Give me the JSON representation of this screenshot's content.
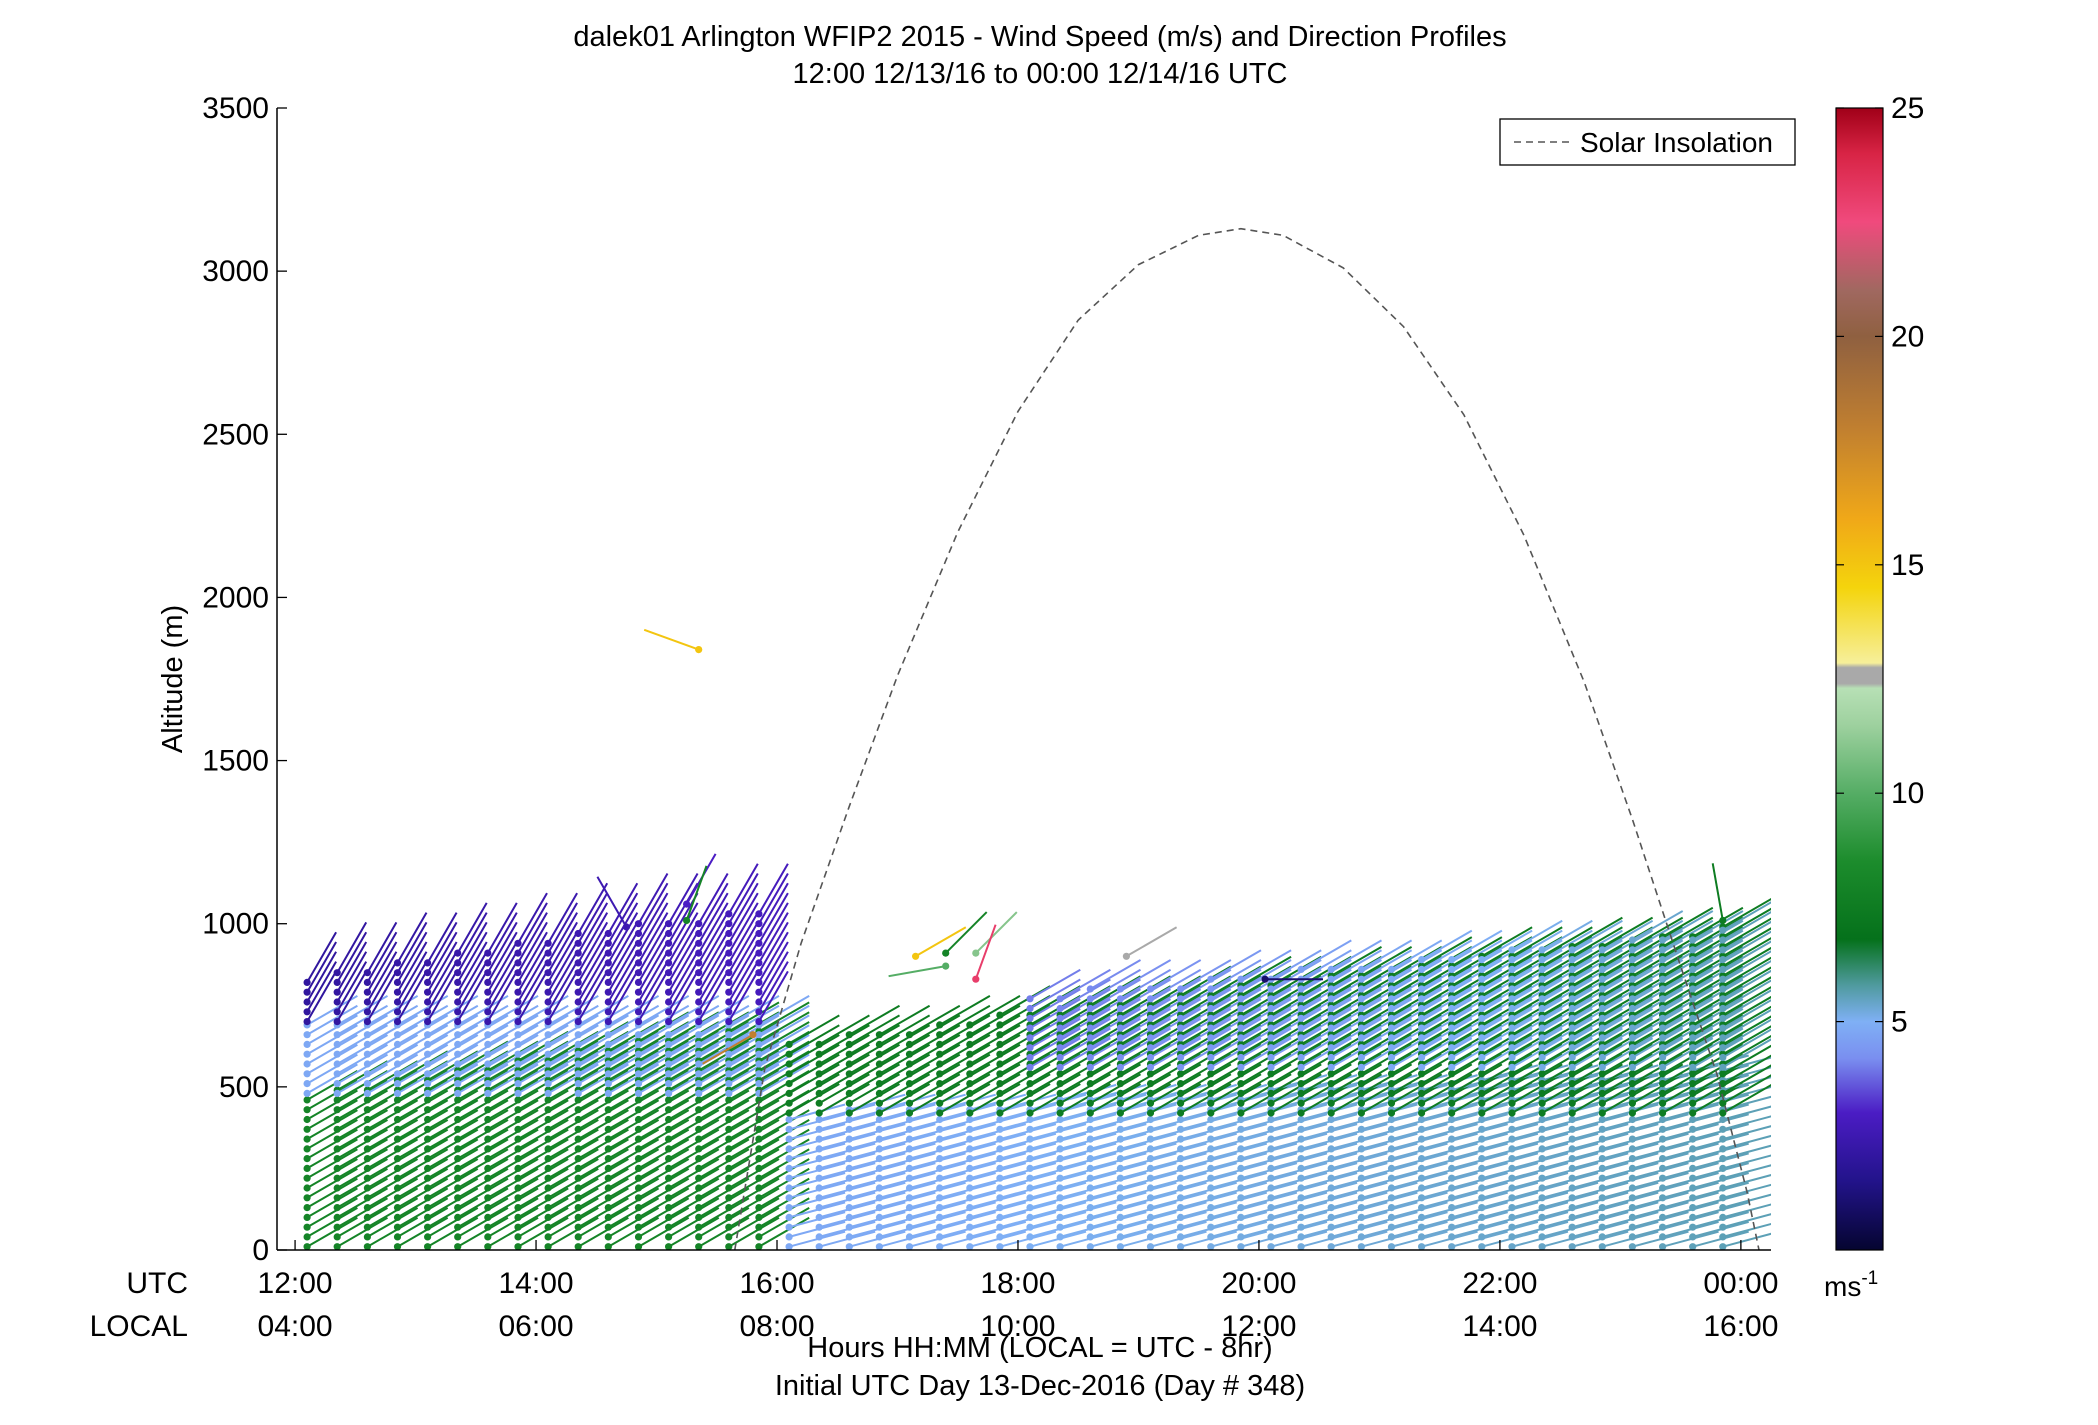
{
  "chart_data": {
    "type": "wind-barb-profile",
    "title": "dalek01 Arlington WFIP2 2015 - Wind Speed (m/s) and Direction Profiles",
    "subtitle": "12:00 12/13/16 to 00:00 12/14/16  UTC",
    "ylabel": "Altitude (m)",
    "ylim": [
      0,
      3500
    ],
    "yticks": [
      0,
      500,
      1000,
      1500,
      2000,
      2500,
      3000,
      3500
    ],
    "xlim_utc_hours": [
      11.85,
      24.25
    ],
    "xticks_utc_hours": [
      12,
      14,
      16,
      18,
      20,
      22,
      24
    ],
    "xtick_labels_utc": [
      "12:00",
      "14:00",
      "16:00",
      "18:00",
      "20:00",
      "22:00",
      "00:00"
    ],
    "xtick_labels_local": [
      "04:00",
      "06:00",
      "08:00",
      "10:00",
      "12:00",
      "14:00",
      "16:00"
    ],
    "xaxis_row_label_utc": "UTC",
    "xaxis_row_label_local": "LOCAL",
    "xlabel": "Hours HH:MM  (LOCAL = UTC - 8hr)",
    "xlabel2": "Initial UTC Day 13-Dec-2016 (Day # 348)",
    "legend": {
      "entry": "Solar Insolation",
      "position": "top-right",
      "line_style": "dashed",
      "color": "#555555"
    },
    "colorbar": {
      "range": [
        0,
        25
      ],
      "ticks": [
        5,
        10,
        15,
        20,
        25
      ],
      "unit_main": "ms",
      "unit_sup": "-1",
      "colors": [
        {
          "v": 0,
          "c": "#050530"
        },
        {
          "v": 1.5,
          "c": "#22138a"
        },
        {
          "v": 3,
          "c": "#4b1cc4"
        },
        {
          "v": 4.2,
          "c": "#7a8ff0"
        },
        {
          "v": 5,
          "c": "#7fb0f5"
        },
        {
          "v": 5.8,
          "c": "#4f9a9e"
        },
        {
          "v": 6.8,
          "c": "#05711b"
        },
        {
          "v": 8.5,
          "c": "#1c8c2c"
        },
        {
          "v": 10,
          "c": "#55ad65"
        },
        {
          "v": 11.5,
          "c": "#9ed19f"
        },
        {
          "v": 12.3,
          "c": "#b7e0b5"
        },
        {
          "v": 12.4,
          "c": "#a9a9a9"
        },
        {
          "v": 12.75,
          "c": "#a9a9a9"
        },
        {
          "v": 12.85,
          "c": "#f6ef9a"
        },
        {
          "v": 14.5,
          "c": "#f4d40c"
        },
        {
          "v": 16,
          "c": "#f0a818"
        },
        {
          "v": 18,
          "c": "#c07f30"
        },
        {
          "v": 20,
          "c": "#8f6040"
        },
        {
          "v": 21,
          "c": "#a06860"
        },
        {
          "v": 22.5,
          "c": "#f04a7d"
        },
        {
          "v": 24,
          "c": "#d82445"
        },
        {
          "v": 25,
          "c": "#a00018"
        }
      ]
    },
    "solar_insolation_curve": {
      "description_units": "altitude-axis units (m)",
      "points": [
        [
          15.65,
          0
        ],
        [
          15.9,
          560
        ],
        [
          16.2,
          940
        ],
        [
          16.6,
          1360
        ],
        [
          17.0,
          1760
        ],
        [
          17.5,
          2200
        ],
        [
          18.0,
          2570
        ],
        [
          18.5,
          2850
        ],
        [
          19.0,
          3020
        ],
        [
          19.5,
          3110
        ],
        [
          19.85,
          3130
        ],
        [
          20.2,
          3110
        ],
        [
          20.7,
          3010
        ],
        [
          21.2,
          2830
        ],
        [
          21.7,
          2560
        ],
        [
          22.2,
          2190
        ],
        [
          22.7,
          1740
        ],
        [
          23.1,
          1320
        ],
        [
          23.5,
          870
        ],
        [
          23.8,
          540
        ],
        [
          24.05,
          180
        ],
        [
          24.15,
          0
        ]
      ]
    },
    "profile_times_utc": {
      "start": 12.1,
      "end": 24.05,
      "step": 0.25,
      "gap_start": 15.9,
      "gap_end": 16.0
    },
    "profile_heights_m": {
      "lowest": 10,
      "spacing": 30
    },
    "layers": [
      {
        "t_start": 12.0,
        "t_end": 15.9,
        "z_bottom": 0,
        "z_top_start": 480,
        "z_top_end": 700,
        "speed_start": 8.0,
        "speed_end": 8.0,
        "direction_deg": 60
      },
      {
        "t_start": 12.0,
        "t_end": 15.9,
        "z_bottom": 480,
        "z_top_start": 700,
        "z_top_end": 720,
        "speed_start": 4.8,
        "speed_end": 4.8,
        "direction_deg": 60
      },
      {
        "t_start": 12.0,
        "t_end": 15.9,
        "z_bottom": 700,
        "z_top_start": 840,
        "z_top_end": 1060,
        "speed_start": 2.0,
        "speed_end": 2.8,
        "direction_deg": 30
      },
      {
        "t_start": 16.0,
        "t_end": 24.05,
        "z_bottom": 0,
        "z_top_start": 420,
        "z_top_end": 560,
        "speed_start": 4.8,
        "speed_end": 5.6,
        "direction_deg": 75
      },
      {
        "t_start": 16.0,
        "t_end": 24.05,
        "z_bottom": 420,
        "z_top_start": 640,
        "z_top_end": 1000,
        "speed_start": 7.5,
        "speed_end": 7.5,
        "direction_deg": 60
      },
      {
        "t_start": 18.0,
        "t_end": 24.05,
        "z_bottom": 560,
        "z_top_start": 780,
        "z_top_end": 990,
        "speed_start": 4.0,
        "speed_end": 5.6,
        "direction_deg": 60
      }
    ],
    "isolated_barbs": [
      {
        "t_utc": 15.35,
        "z_m": 1840,
        "speed": 15.0,
        "direction_deg": 290
      },
      {
        "t_utc": 15.25,
        "z_m": 1060,
        "speed": 3.0,
        "direction_deg": 30
      },
      {
        "t_utc": 15.25,
        "z_m": 1010,
        "speed": 8.0,
        "direction_deg": 20
      },
      {
        "t_utc": 14.75,
        "z_m": 990,
        "speed": 2.5,
        "direction_deg": 330
      },
      {
        "t_utc": 17.15,
        "z_m": 900,
        "speed": 15.0,
        "direction_deg": 60
      },
      {
        "t_utc": 17.4,
        "z_m": 910,
        "speed": 8.0,
        "direction_deg": 45
      },
      {
        "t_utc": 17.65,
        "z_m": 910,
        "speed": 11.0,
        "direction_deg": 45
      },
      {
        "t_utc": 17.65,
        "z_m": 830,
        "speed": 23.0,
        "direction_deg": 20
      },
      {
        "t_utc": 17.4,
        "z_m": 870,
        "speed": 10.0,
        "direction_deg": 260
      },
      {
        "t_utc": 18.9,
        "z_m": 900,
        "speed": 12.5,
        "direction_deg": 60
      },
      {
        "t_utc": 15.8,
        "z_m": 660,
        "speed": 18.0,
        "direction_deg": 240
      },
      {
        "t_utc": 23.85,
        "z_m": 1010,
        "speed": 7.5,
        "direction_deg": 350
      },
      {
        "t_utc": 20.05,
        "z_m": 830,
        "speed": 1.0,
        "direction_deg": 90
      }
    ]
  }
}
